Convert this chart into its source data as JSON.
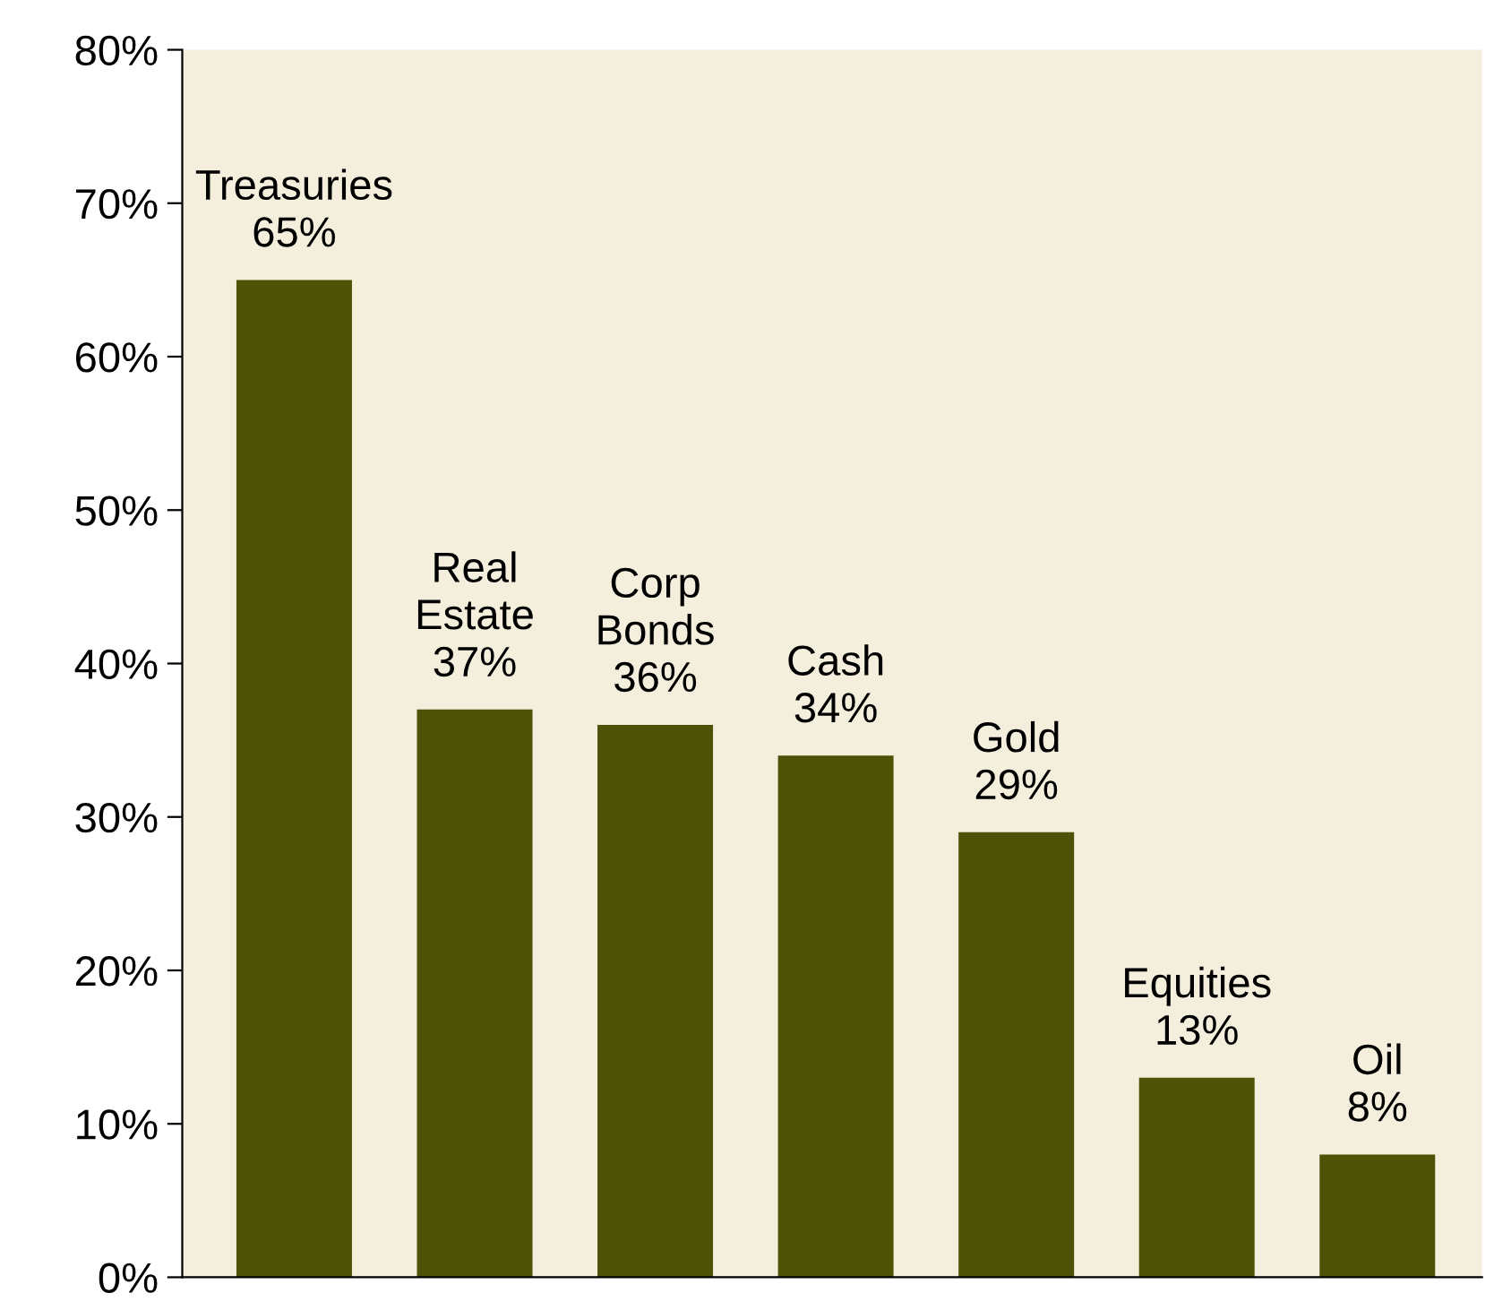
{
  "chart_data": {
    "type": "bar",
    "categories": [
      "Treasuries",
      "Real\nEstate",
      "Corp\nBonds",
      "Cash",
      "Gold",
      "Equities",
      "Oil"
    ],
    "values": [
      65,
      37,
      36,
      34,
      29,
      13,
      8
    ],
    "value_labels": [
      "65%",
      "37%",
      "36%",
      "34%",
      "29%",
      "13%",
      "8%"
    ],
    "color": "#4d5206",
    "ylim": [
      0,
      80
    ],
    "yticks": [
      {
        "value": 0,
        "label": "0%"
      },
      {
        "value": 10,
        "label": "10%"
      },
      {
        "value": 20,
        "label": "20%"
      },
      {
        "value": 30,
        "label": "30%"
      },
      {
        "value": 40,
        "label": "40%"
      },
      {
        "value": 50,
        "label": "50%"
      },
      {
        "value": 60,
        "label": "60%"
      },
      {
        "value": 70,
        "label": "70%"
      },
      {
        "value": 80,
        "label": "80%"
      }
    ],
    "grid": false,
    "legend": false
  }
}
